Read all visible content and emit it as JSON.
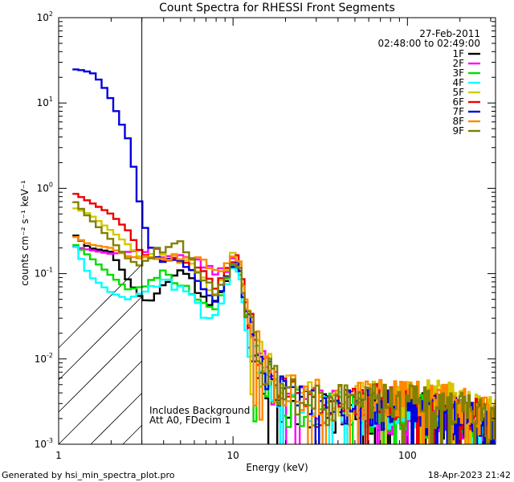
{
  "header": {
    "title": "Count Spectra for RHESSI Front Segments",
    "date": "27-Feb-2011",
    "time_range": "02:48:00 to 02:49:00"
  },
  "footer": {
    "generated_by": "Generated by hsi_min_spectra_plot.pro",
    "timestamp": "18-Apr-2023 21:42"
  },
  "notes": {
    "line1": "Includes Background",
    "line2": "Att A0, FDecim 1"
  },
  "colors": {
    "1F": "#000000",
    "2F": "#ff00ff",
    "3F": "#00dd00",
    "4F": "#00ffff",
    "5F": "#d4c800",
    "6F": "#ee0000",
    "7F": "#0000dd",
    "8F": "#ff8800",
    "9F": "#808000"
  },
  "chart_data": {
    "type": "line",
    "title": "Count Spectra for RHESSI Front Segments",
    "xlabel": "Energy (keV)",
    "ylabel": "counts cm⁻² s⁻¹ keV⁻¹",
    "xscale": "log",
    "yscale": "log",
    "xlim": [
      1,
      320
    ],
    "ylim": [
      0.001,
      100
    ],
    "x_ticks": [
      {
        "value": 1,
        "label": "1"
      },
      {
        "value": 10,
        "label": "10"
      },
      {
        "value": 100,
        "label": "100"
      }
    ],
    "y_ticks": [
      {
        "value": 0.001,
        "mant": "10",
        "exp": "-3"
      },
      {
        "value": 0.01,
        "mant": "10",
        "exp": "-2"
      },
      {
        "value": 0.1,
        "mant": "10",
        "exp": "-1"
      },
      {
        "value": 1,
        "mant": "10",
        "exp": "0"
      },
      {
        "value": 10,
        "mant": "10",
        "exp": "1"
      },
      {
        "value": 100,
        "mant": "10",
        "exp": "2"
      }
    ],
    "excluded_region_keV": [
      1,
      3
    ],
    "legend_position": "top-right",
    "series": [
      {
        "name": "1F",
        "color": "#000000",
        "anchors": [
          [
            1.2,
            0.3
          ],
          [
            1.5,
            0.2
          ],
          [
            2.0,
            0.18
          ],
          [
            2.5,
            0.085
          ],
          [
            3.0,
            0.05
          ],
          [
            3.5,
            0.055
          ],
          [
            4.0,
            0.08
          ],
          [
            5.0,
            0.12
          ],
          [
            6.0,
            0.075
          ],
          [
            7.0,
            0.045
          ],
          [
            8.0,
            0.05
          ],
          [
            9.0,
            0.08
          ],
          [
            10.2,
            0.14
          ],
          [
            11.0,
            0.1
          ],
          [
            12.0,
            0.025
          ],
          [
            14.0,
            0.008
          ],
          [
            17.0,
            0.0045
          ],
          [
            20.0,
            0.003
          ],
          [
            30.0,
            0.0025
          ],
          [
            50.0,
            0.0025
          ],
          [
            80.0,
            0.0025
          ],
          [
            120.0,
            0.0025
          ],
          [
            200.0,
            0.002
          ],
          [
            300.0,
            0.0016
          ]
        ]
      },
      {
        "name": "2F",
        "color": "#ff00ff",
        "anchors": [
          [
            1.2,
            0.21
          ],
          [
            1.5,
            0.19
          ],
          [
            2.0,
            0.17
          ],
          [
            2.5,
            0.18
          ],
          [
            3.0,
            0.19
          ],
          [
            3.5,
            0.18
          ],
          [
            4.0,
            0.17
          ],
          [
            5.0,
            0.16
          ],
          [
            6.0,
            0.15
          ],
          [
            7.0,
            0.12
          ],
          [
            8.0,
            0.1
          ],
          [
            9.0,
            0.11
          ],
          [
            10.2,
            0.15
          ],
          [
            11.0,
            0.1
          ],
          [
            12.0,
            0.03
          ],
          [
            14.0,
            0.009
          ],
          [
            17.0,
            0.005
          ],
          [
            20.0,
            0.0032
          ],
          [
            30.0,
            0.0027
          ],
          [
            50.0,
            0.0024
          ],
          [
            80.0,
            0.0024
          ],
          [
            120.0,
            0.0023
          ],
          [
            200.0,
            0.002
          ],
          [
            300.0,
            0.0016
          ]
        ]
      },
      {
        "name": "3F",
        "color": "#00dd00",
        "anchors": [
          [
            1.2,
            0.23
          ],
          [
            1.5,
            0.16
          ],
          [
            2.0,
            0.095
          ],
          [
            2.5,
            0.065
          ],
          [
            3.0,
            0.07
          ],
          [
            3.5,
            0.08
          ],
          [
            4.0,
            0.1
          ],
          [
            5.0,
            0.08
          ],
          [
            6.0,
            0.06
          ],
          [
            7.0,
            0.04
          ],
          [
            8.0,
            0.04
          ],
          [
            9.0,
            0.07
          ],
          [
            10.2,
            0.13
          ],
          [
            11.0,
            0.09
          ],
          [
            12.0,
            0.025
          ],
          [
            14.0,
            0.008
          ],
          [
            17.0,
            0.0045
          ],
          [
            20.0,
            0.003
          ],
          [
            30.0,
            0.0025
          ],
          [
            50.0,
            0.0025
          ],
          [
            80.0,
            0.0024
          ],
          [
            120.0,
            0.0023
          ],
          [
            200.0,
            0.002
          ],
          [
            300.0,
            0.0016
          ]
        ]
      },
      {
        "name": "4F",
        "color": "#00ffff",
        "anchors": [
          [
            1.2,
            0.24
          ],
          [
            1.5,
            0.095
          ],
          [
            2.0,
            0.06
          ],
          [
            2.5,
            0.05
          ],
          [
            3.0,
            0.06
          ],
          [
            3.5,
            0.07
          ],
          [
            4.0,
            0.08
          ],
          [
            5.0,
            0.07
          ],
          [
            6.0,
            0.05
          ],
          [
            7.0,
            0.03
          ],
          [
            8.0,
            0.035
          ],
          [
            9.0,
            0.06
          ],
          [
            10.2,
            0.12
          ],
          [
            11.0,
            0.08
          ],
          [
            12.0,
            0.02
          ],
          [
            14.0,
            0.007
          ],
          [
            17.0,
            0.004
          ],
          [
            20.0,
            0.003
          ],
          [
            30.0,
            0.0025
          ],
          [
            50.0,
            0.0024
          ],
          [
            80.0,
            0.0023
          ],
          [
            120.0,
            0.0022
          ],
          [
            200.0,
            0.0019
          ],
          [
            300.0,
            0.0015
          ]
        ]
      },
      {
        "name": "5F",
        "color": "#d4c800",
        "anchors": [
          [
            1.2,
            0.6
          ],
          [
            1.5,
            0.5
          ],
          [
            2.0,
            0.32
          ],
          [
            2.5,
            0.22
          ],
          [
            3.0,
            0.15
          ],
          [
            3.5,
            0.17
          ],
          [
            4.0,
            0.16
          ],
          [
            5.0,
            0.15
          ],
          [
            6.0,
            0.13
          ],
          [
            7.0,
            0.08
          ],
          [
            8.0,
            0.06
          ],
          [
            9.0,
            0.09
          ],
          [
            10.2,
            0.18
          ],
          [
            11.0,
            0.12
          ],
          [
            12.0,
            0.035
          ],
          [
            14.0,
            0.011
          ],
          [
            17.0,
            0.006
          ],
          [
            20.0,
            0.004
          ],
          [
            30.0,
            0.0032
          ],
          [
            50.0,
            0.0032
          ],
          [
            80.0,
            0.0034
          ],
          [
            120.0,
            0.0036
          ],
          [
            200.0,
            0.003
          ],
          [
            300.0,
            0.0022
          ]
        ]
      },
      {
        "name": "6F",
        "color": "#ee0000",
        "anchors": [
          [
            1.2,
            0.9
          ],
          [
            1.5,
            0.7
          ],
          [
            2.0,
            0.5
          ],
          [
            2.5,
            0.32
          ],
          [
            3.0,
            0.17
          ],
          [
            3.5,
            0.15
          ],
          [
            4.0,
            0.14
          ],
          [
            5.0,
            0.14
          ],
          [
            6.0,
            0.12
          ],
          [
            7.0,
            0.09
          ],
          [
            8.0,
            0.07
          ],
          [
            9.0,
            0.1
          ],
          [
            10.2,
            0.17
          ],
          [
            11.0,
            0.13
          ],
          [
            12.0,
            0.04
          ],
          [
            14.0,
            0.012
          ],
          [
            17.0,
            0.006
          ],
          [
            20.0,
            0.004
          ],
          [
            30.0,
            0.003
          ],
          [
            50.0,
            0.003
          ],
          [
            80.0,
            0.003
          ],
          [
            120.0,
            0.0028
          ],
          [
            200.0,
            0.0024
          ],
          [
            300.0,
            0.0018
          ]
        ]
      },
      {
        "name": "7F",
        "color": "#0000dd",
        "anchors": [
          [
            1.2,
            25.0
          ],
          [
            1.4,
            24.0
          ],
          [
            1.6,
            22.0
          ],
          [
            1.8,
            16.0
          ],
          [
            2.0,
            11.0
          ],
          [
            2.2,
            7.0
          ],
          [
            2.5,
            3.8
          ],
          [
            2.8,
            1.2
          ],
          [
            3.0,
            0.45
          ],
          [
            3.5,
            0.17
          ],
          [
            4.0,
            0.14
          ],
          [
            5.0,
            0.13
          ],
          [
            6.0,
            0.1
          ],
          [
            7.0,
            0.06
          ],
          [
            8.0,
            0.05
          ],
          [
            9.0,
            0.08
          ],
          [
            10.2,
            0.15
          ],
          [
            11.0,
            0.1
          ],
          [
            12.0,
            0.03
          ],
          [
            14.0,
            0.009
          ],
          [
            17.0,
            0.005
          ],
          [
            20.0,
            0.0032
          ],
          [
            30.0,
            0.0026
          ],
          [
            50.0,
            0.0026
          ],
          [
            80.0,
            0.0026
          ],
          [
            120.0,
            0.0024
          ],
          [
            200.0,
            0.0021
          ],
          [
            300.0,
            0.0016
          ]
        ]
      },
      {
        "name": "8F",
        "color": "#ff8800",
        "anchors": [
          [
            1.2,
            0.28
          ],
          [
            1.5,
            0.22
          ],
          [
            2.0,
            0.2
          ],
          [
            2.5,
            0.16
          ],
          [
            3.0,
            0.15
          ],
          [
            3.5,
            0.17
          ],
          [
            4.0,
            0.16
          ],
          [
            5.0,
            0.15
          ],
          [
            6.0,
            0.15
          ],
          [
            7.0,
            0.13
          ],
          [
            8.0,
            0.12
          ],
          [
            9.0,
            0.12
          ],
          [
            10.2,
            0.19
          ],
          [
            11.0,
            0.13
          ],
          [
            12.0,
            0.04
          ],
          [
            14.0,
            0.012
          ],
          [
            17.0,
            0.006
          ],
          [
            20.0,
            0.0042
          ],
          [
            30.0,
            0.0034
          ],
          [
            50.0,
            0.0034
          ],
          [
            80.0,
            0.0034
          ],
          [
            120.0,
            0.0032
          ],
          [
            200.0,
            0.0028
          ],
          [
            300.0,
            0.002
          ]
        ]
      },
      {
        "name": "9F",
        "color": "#808000",
        "anchors": [
          [
            1.2,
            0.75
          ],
          [
            1.5,
            0.45
          ],
          [
            2.0,
            0.25
          ],
          [
            2.5,
            0.15
          ],
          [
            3.0,
            0.12
          ],
          [
            3.5,
            0.18
          ],
          [
            4.0,
            0.2
          ],
          [
            5.0,
            0.22
          ],
          [
            6.0,
            0.12
          ],
          [
            7.0,
            0.08
          ],
          [
            8.0,
            0.06
          ],
          [
            9.0,
            0.08
          ],
          [
            10.2,
            0.16
          ],
          [
            11.0,
            0.11
          ],
          [
            12.0,
            0.03
          ],
          [
            14.0,
            0.01
          ],
          [
            17.0,
            0.0055
          ],
          [
            20.0,
            0.0036
          ],
          [
            30.0,
            0.003
          ],
          [
            50.0,
            0.003
          ],
          [
            80.0,
            0.003
          ],
          [
            120.0,
            0.0029
          ],
          [
            200.0,
            0.0025
          ],
          [
            300.0,
            0.0018
          ]
        ]
      }
    ]
  }
}
